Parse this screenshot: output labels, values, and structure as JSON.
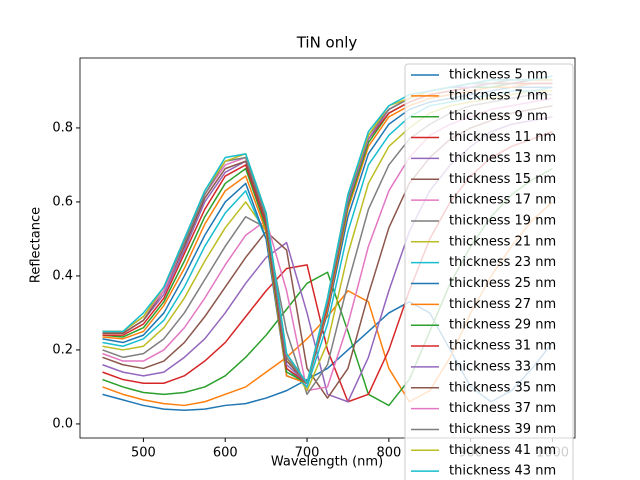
{
  "chart_data": {
    "type": "line",
    "title": "TiN only",
    "x_label": "Wavelength (nm)",
    "y_label": "Reflectance",
    "x": [
      450,
      475,
      500,
      525,
      550,
      575,
      600,
      625,
      650,
      675,
      700,
      725,
      750,
      775,
      800,
      825,
      850,
      875,
      900,
      925,
      950,
      975,
      1000
    ],
    "xlim": [
      422.5,
      1027.5
    ],
    "xticks": [
      500,
      600,
      700,
      800,
      900,
      1000
    ],
    "ylim": [
      -0.038,
      0.989
    ],
    "yticks": [
      {
        "value": 0,
        "label": "0.0"
      },
      0.2,
      0.4,
      0.6,
      0.8
    ],
    "legend": "upper right",
    "series": [
      {
        "name": "thickness 5 nm",
        "color": "#1f77b4",
        "values": [
          0.08,
          0.065,
          0.05,
          0.04,
          0.037,
          0.04,
          0.05,
          0.055,
          0.07,
          0.09,
          0.12,
          0.15,
          0.2,
          0.25,
          0.3,
          0.33,
          0.3,
          0.2,
          0.1,
          0.06,
          0.09,
          0.15,
          0.22
        ]
      },
      {
        "name": "thickness 7 nm",
        "color": "#ff7f0e",
        "values": [
          0.1,
          0.08,
          0.065,
          0.055,
          0.05,
          0.06,
          0.08,
          0.1,
          0.14,
          0.18,
          0.23,
          0.29,
          0.36,
          0.33,
          0.15,
          0.06,
          0.09,
          0.18,
          0.3,
          0.4,
          0.48,
          0.55,
          0.6
        ]
      },
      {
        "name": "thickness 9 nm",
        "color": "#2ca02c",
        "values": [
          0.12,
          0.1,
          0.085,
          0.08,
          0.085,
          0.1,
          0.13,
          0.18,
          0.24,
          0.31,
          0.38,
          0.41,
          0.25,
          0.08,
          0.05,
          0.12,
          0.25,
          0.38,
          0.48,
          0.56,
          0.62,
          0.66,
          0.69
        ]
      },
      {
        "name": "thickness 11 nm",
        "color": "#d62728",
        "values": [
          0.14,
          0.12,
          0.11,
          0.11,
          0.13,
          0.17,
          0.22,
          0.29,
          0.36,
          0.42,
          0.43,
          0.2,
          0.06,
          0.08,
          0.2,
          0.36,
          0.5,
          0.6,
          0.67,
          0.72,
          0.75,
          0.77,
          0.79
        ]
      },
      {
        "name": "thickness 13 nm",
        "color": "#9467bd",
        "values": [
          0.16,
          0.14,
          0.13,
          0.14,
          0.18,
          0.23,
          0.3,
          0.38,
          0.45,
          0.49,
          0.3,
          0.08,
          0.06,
          0.18,
          0.36,
          0.52,
          0.63,
          0.7,
          0.75,
          0.79,
          0.81,
          0.82,
          0.83
        ]
      },
      {
        "name": "thickness 15 nm",
        "color": "#8c564b",
        "values": [
          0.18,
          0.16,
          0.15,
          0.17,
          0.22,
          0.29,
          0.37,
          0.45,
          0.52,
          0.47,
          0.15,
          0.07,
          0.15,
          0.35,
          0.53,
          0.65,
          0.72,
          0.77,
          0.8,
          0.82,
          0.84,
          0.85,
          0.86
        ]
      },
      {
        "name": "thickness 17 nm",
        "color": "#e377c2",
        "values": [
          0.19,
          0.17,
          0.17,
          0.2,
          0.26,
          0.34,
          0.43,
          0.51,
          0.55,
          0.36,
          0.09,
          0.1,
          0.27,
          0.48,
          0.63,
          0.72,
          0.78,
          0.81,
          0.83,
          0.85,
          0.86,
          0.87,
          0.88
        ]
      },
      {
        "name": "thickness 19 nm",
        "color": "#7f7f7f",
        "values": [
          0.2,
          0.18,
          0.19,
          0.23,
          0.3,
          0.39,
          0.48,
          0.56,
          0.53,
          0.25,
          0.08,
          0.16,
          0.38,
          0.58,
          0.7,
          0.77,
          0.81,
          0.84,
          0.86,
          0.87,
          0.88,
          0.89,
          0.89
        ]
      },
      {
        "name": "thickness 21 nm",
        "color": "#bcbd22",
        "values": [
          0.21,
          0.2,
          0.21,
          0.26,
          0.34,
          0.44,
          0.53,
          0.6,
          0.52,
          0.18,
          0.09,
          0.22,
          0.46,
          0.65,
          0.75,
          0.8,
          0.84,
          0.86,
          0.87,
          0.88,
          0.89,
          0.9,
          0.9
        ]
      },
      {
        "name": "thickness 23 nm",
        "color": "#17becf",
        "values": [
          0.22,
          0.21,
          0.23,
          0.28,
          0.37,
          0.48,
          0.57,
          0.63,
          0.5,
          0.15,
          0.1,
          0.27,
          0.52,
          0.7,
          0.78,
          0.83,
          0.86,
          0.87,
          0.88,
          0.89,
          0.9,
          0.9,
          0.91
        ]
      },
      {
        "name": "thickness 25 nm",
        "color": "#1f77b4",
        "values": [
          0.23,
          0.22,
          0.24,
          0.3,
          0.4,
          0.51,
          0.6,
          0.65,
          0.5,
          0.13,
          0.11,
          0.3,
          0.56,
          0.73,
          0.81,
          0.85,
          0.87,
          0.88,
          0.89,
          0.9,
          0.91,
          0.91,
          0.91
        ]
      },
      {
        "name": "thickness 27 nm",
        "color": "#ff7f0e",
        "values": [
          0.235,
          0.23,
          0.25,
          0.32,
          0.42,
          0.54,
          0.63,
          0.67,
          0.52,
          0.13,
          0.11,
          0.31,
          0.58,
          0.75,
          0.83,
          0.86,
          0.88,
          0.89,
          0.9,
          0.91,
          0.91,
          0.92,
          0.92
        ]
      },
      {
        "name": "thickness 29 nm",
        "color": "#2ca02c",
        "values": [
          0.24,
          0.235,
          0.26,
          0.33,
          0.44,
          0.56,
          0.65,
          0.69,
          0.53,
          0.14,
          0.11,
          0.32,
          0.59,
          0.76,
          0.84,
          0.87,
          0.89,
          0.9,
          0.91,
          0.91,
          0.92,
          0.92,
          0.92
        ]
      },
      {
        "name": "thickness 31 nm",
        "color": "#d62728",
        "values": [
          0.24,
          0.24,
          0.27,
          0.34,
          0.46,
          0.58,
          0.67,
          0.7,
          0.54,
          0.15,
          0.11,
          0.32,
          0.6,
          0.77,
          0.84,
          0.87,
          0.89,
          0.9,
          0.91,
          0.92,
          0.92,
          0.92,
          0.92
        ]
      },
      {
        "name": "thickness 33 nm",
        "color": "#9467bd",
        "values": [
          0.245,
          0.245,
          0.28,
          0.35,
          0.47,
          0.6,
          0.68,
          0.71,
          0.55,
          0.16,
          0.11,
          0.33,
          0.6,
          0.77,
          0.85,
          0.88,
          0.9,
          0.91,
          0.91,
          0.92,
          0.92,
          0.93,
          0.93
        ]
      },
      {
        "name": "thickness 35 nm",
        "color": "#8c564b",
        "values": [
          0.245,
          0.245,
          0.28,
          0.36,
          0.48,
          0.61,
          0.69,
          0.71,
          0.55,
          0.17,
          0.11,
          0.33,
          0.61,
          0.78,
          0.85,
          0.88,
          0.9,
          0.91,
          0.92,
          0.92,
          0.92,
          0.93,
          0.93
        ]
      },
      {
        "name": "thickness 37 nm",
        "color": "#e377c2",
        "values": [
          0.25,
          0.25,
          0.29,
          0.36,
          0.49,
          0.62,
          0.7,
          0.72,
          0.56,
          0.18,
          0.11,
          0.33,
          0.61,
          0.78,
          0.85,
          0.88,
          0.9,
          0.91,
          0.92,
          0.92,
          0.93,
          0.93,
          0.93
        ]
      },
      {
        "name": "thickness 39 nm",
        "color": "#7f7f7f",
        "values": [
          0.25,
          0.25,
          0.29,
          0.37,
          0.49,
          0.62,
          0.71,
          0.72,
          0.56,
          0.18,
          0.11,
          0.33,
          0.61,
          0.78,
          0.85,
          0.88,
          0.9,
          0.91,
          0.92,
          0.92,
          0.93,
          0.93,
          0.93
        ]
      },
      {
        "name": "thickness 41 nm",
        "color": "#bcbd22",
        "values": [
          0.25,
          0.25,
          0.29,
          0.37,
          0.5,
          0.63,
          0.71,
          0.73,
          0.57,
          0.19,
          0.11,
          0.34,
          0.62,
          0.78,
          0.86,
          0.88,
          0.9,
          0.91,
          0.92,
          0.93,
          0.93,
          0.93,
          0.93
        ]
      },
      {
        "name": "thickness 43 nm",
        "color": "#17becf",
        "values": [
          0.25,
          0.25,
          0.3,
          0.37,
          0.5,
          0.63,
          0.72,
          0.73,
          0.57,
          0.19,
          0.11,
          0.34,
          0.62,
          0.79,
          0.86,
          0.89,
          0.9,
          0.91,
          0.92,
          0.93,
          0.93,
          0.93,
          0.94
        ]
      }
    ]
  }
}
